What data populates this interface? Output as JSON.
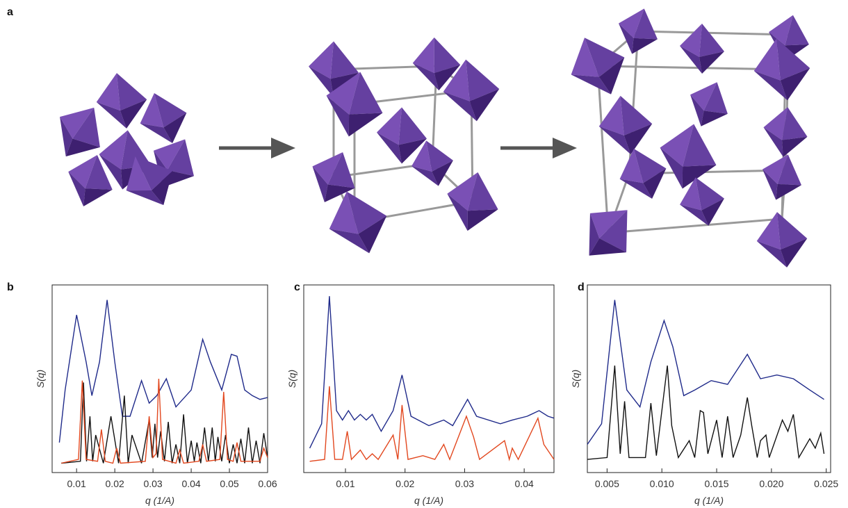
{
  "panel_a": {
    "label": "a"
  },
  "chart_data": [
    {
      "type": "line",
      "panel": "b",
      "xlabel": "q (1/A)",
      "ylabel": "S(q)",
      "xlim": [
        0.0036,
        0.06
      ],
      "ylim": [
        0,
        100
      ],
      "xticks": [
        0.01,
        0.02,
        0.03,
        0.04,
        0.05,
        0.06
      ],
      "series": [
        {
          "color": "#1f2a8a",
          "x": [
            0.0055,
            0.007,
            0.01,
            0.0125,
            0.014,
            0.016,
            0.018,
            0.02,
            0.022,
            0.024,
            0.027,
            0.029,
            0.031,
            0.0335,
            0.036,
            0.04,
            0.043,
            0.045,
            0.048,
            0.0505,
            0.052,
            0.054,
            0.056,
            0.058,
            0.06
          ],
          "values": [
            16,
            44,
            84,
            59,
            41,
            59,
            92,
            59,
            30,
            30,
            49,
            37,
            41,
            50,
            35,
            44,
            71,
            59,
            44,
            63,
            62,
            44,
            41,
            39,
            40
          ]
        },
        {
          "color": "#111111",
          "x": [
            0.006,
            0.011,
            0.0118,
            0.0126,
            0.0135,
            0.0142,
            0.015,
            0.017,
            0.019,
            0.021,
            0.0225,
            0.0235,
            0.0245,
            0.027,
            0.029,
            0.0298,
            0.0305,
            0.0312,
            0.032,
            0.033,
            0.034,
            0.035,
            0.036,
            0.037,
            0.038,
            0.039,
            0.04,
            0.0408,
            0.0415,
            0.0425,
            0.0435,
            0.0445,
            0.0455,
            0.0463,
            0.047,
            0.048,
            0.049,
            0.05,
            0.051,
            0.052,
            0.053,
            0.054,
            0.055,
            0.056,
            0.057,
            0.058,
            0.059,
            0.06
          ],
          "values": [
            5,
            6,
            48,
            6,
            30,
            6,
            20,
            5,
            30,
            5,
            41,
            5,
            20,
            5,
            28,
            8,
            26,
            8,
            22,
            6,
            27,
            5,
            15,
            5,
            31,
            5,
            17,
            6,
            16,
            5,
            24,
            6,
            24,
            6,
            19,
            6,
            20,
            5,
            15,
            5,
            18,
            5,
            24,
            5,
            17,
            5,
            21,
            8
          ]
        },
        {
          "color": "#e2471e",
          "x": [
            0.006,
            0.0105,
            0.0115,
            0.0125,
            0.0155,
            0.0165,
            0.0175,
            0.0195,
            0.0205,
            0.0215,
            0.028,
            0.029,
            0.03,
            0.0308,
            0.0315,
            0.0325,
            0.036,
            0.037,
            0.038,
            0.042,
            0.043,
            0.044,
            0.0475,
            0.0485,
            0.0495,
            0.051,
            0.052,
            0.053,
            0.058,
            0.059,
            0.06
          ],
          "values": [
            5,
            7,
            49,
            7,
            6,
            23,
            6,
            5,
            13,
            5,
            6,
            30,
            8,
            10,
            50,
            7,
            5,
            12,
            5,
            6,
            15,
            6,
            7,
            43,
            7,
            6,
            16,
            6,
            6,
            13,
            8
          ]
        }
      ]
    },
    {
      "type": "line",
      "panel": "c",
      "xlabel": "q (1/A)",
      "ylabel": "S(q)",
      "xlim": [
        0.003,
        0.045
      ],
      "ylim": [
        0,
        100
      ],
      "xticks": [
        0.01,
        0.02,
        0.03,
        0.04
      ],
      "series": [
        {
          "color": "#1f2a8a",
          "x": [
            0.004,
            0.006,
            0.0073,
            0.0085,
            0.0095,
            0.0105,
            0.0115,
            0.0125,
            0.0135,
            0.0145,
            0.016,
            0.018,
            0.0195,
            0.021,
            0.024,
            0.0265,
            0.028,
            0.0305,
            0.032,
            0.036,
            0.038,
            0.0405,
            0.0425,
            0.044,
            0.045
          ],
          "values": [
            13,
            26,
            94,
            33,
            28,
            33,
            28,
            31,
            28,
            31,
            22,
            33,
            52,
            30,
            25,
            28,
            25,
            39,
            30,
            26,
            28,
            30,
            33,
            30,
            29
          ]
        },
        {
          "color": "#e2471e",
          "x": [
            0.004,
            0.0065,
            0.0073,
            0.0082,
            0.0095,
            0.0103,
            0.011,
            0.0125,
            0.0135,
            0.0145,
            0.0155,
            0.018,
            0.0188,
            0.0195,
            0.0205,
            0.023,
            0.025,
            0.0265,
            0.0275,
            0.0303,
            0.0315,
            0.0325,
            0.0367,
            0.0375,
            0.038,
            0.039,
            0.0423,
            0.0433,
            0.045
          ],
          "values": [
            6,
            7,
            46,
            7,
            7,
            22,
            7,
            12,
            7,
            10,
            7,
            20,
            7,
            36,
            7,
            9,
            7,
            15,
            7,
            30,
            19,
            7,
            17,
            7,
            13,
            7,
            29,
            15,
            7
          ]
        }
      ]
    },
    {
      "type": "line",
      "panel": "d",
      "xlabel": "q (1/A)",
      "ylabel": "S(q)",
      "xlim": [
        0.0032,
        0.0254
      ],
      "ylim": [
        0,
        100
      ],
      "xticks": [
        0.005,
        {
          "value": 0.01,
          "label": "0.010"
        },
        0.015,
        {
          "value": 0.02,
          "label": "0.020"
        },
        0.025
      ],
      "series": [
        {
          "color": "#1f2a8a",
          "x": [
            0.0032,
            0.0045,
            0.0057,
            0.0068,
            0.008,
            0.009,
            0.0102,
            0.011,
            0.012,
            0.013,
            0.0145,
            0.016,
            0.0178,
            0.019,
            0.0205,
            0.022,
            0.0235,
            0.0248
          ],
          "values": [
            15,
            26,
            92,
            44,
            35,
            59,
            81,
            67,
            41,
            44,
            49,
            47,
            63,
            50,
            52,
            50,
            44,
            39
          ]
        },
        {
          "color": "#111111",
          "x": [
            0.0032,
            0.005,
            0.0057,
            0.0062,
            0.0066,
            0.007,
            0.0085,
            0.009,
            0.0095,
            0.0105,
            0.0109,
            0.0115,
            0.0125,
            0.013,
            0.0135,
            0.0138,
            0.0142,
            0.015,
            0.0155,
            0.016,
            0.0165,
            0.0172,
            0.0178,
            0.0182,
            0.0187,
            0.019,
            0.0195,
            0.0198,
            0.021,
            0.0215,
            0.022,
            0.0225,
            0.0235,
            0.024,
            0.0245,
            0.0248
          ],
          "values": [
            7,
            8,
            57,
            10,
            38,
            8,
            8,
            37,
            9,
            57,
            25,
            8,
            17,
            8,
            33,
            32,
            10,
            28,
            8,
            30,
            8,
            20,
            40,
            25,
            8,
            17,
            20,
            8,
            28,
            22,
            31,
            8,
            18,
            13,
            21,
            10
          ]
        }
      ]
    }
  ]
}
